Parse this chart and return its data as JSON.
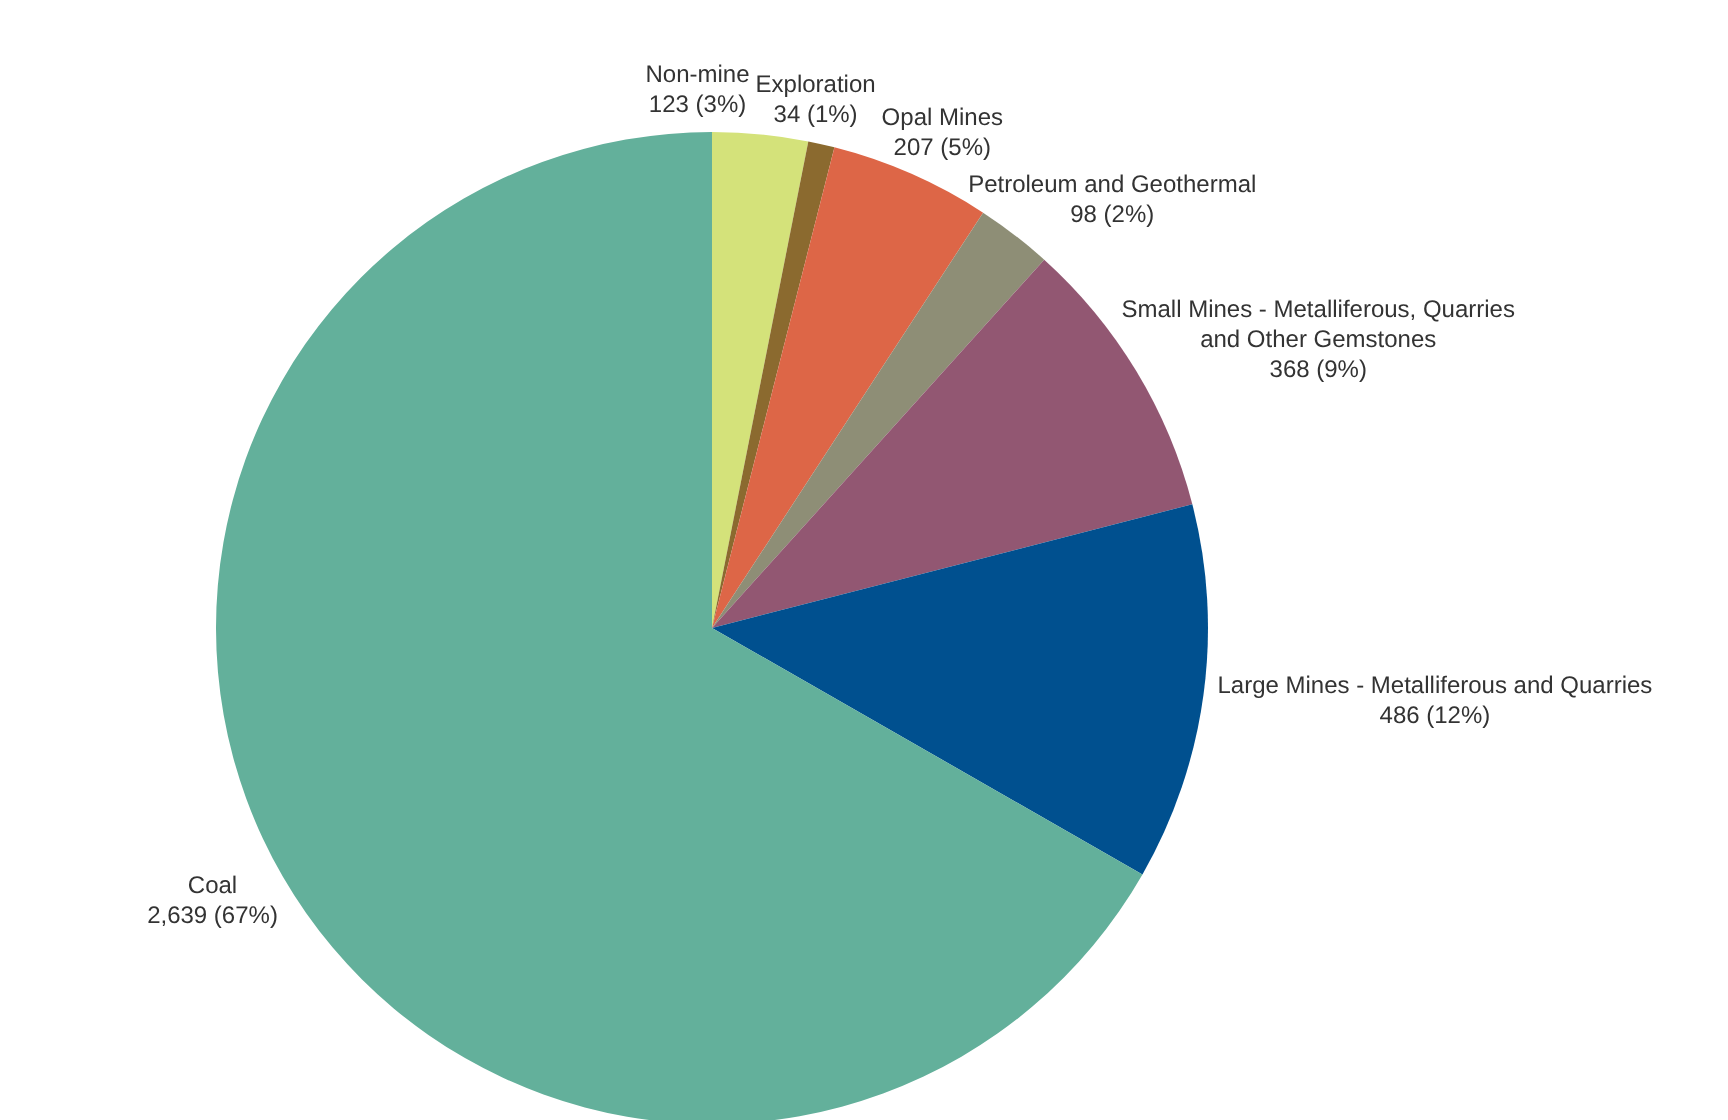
{
  "chart_data": {
    "type": "pie",
    "categories": [
      "Non-mine",
      "Exploration",
      "Opal Mines",
      "Petroleum and Geothermal",
      "Small Mines - Metalliferous, Quarries\nand Other Gemstones",
      "Large Mines - Metalliferous and Quarries",
      "Coal"
    ],
    "values": [
      123,
      34,
      207,
      98,
      368,
      486,
      2639
    ],
    "colors": [
      "#d4e27a",
      "#8b6a2f",
      "#dd6647",
      "#8e8e76",
      "#925772",
      "#00508f",
      "#63b09b"
    ],
    "value_labels": [
      "123 (3%)",
      "34 (1%)",
      "207 (5%)",
      "98 (2%)",
      "368 (9%)",
      "486 (12%)",
      "2,639 (67%)"
    ],
    "legend": false
  }
}
